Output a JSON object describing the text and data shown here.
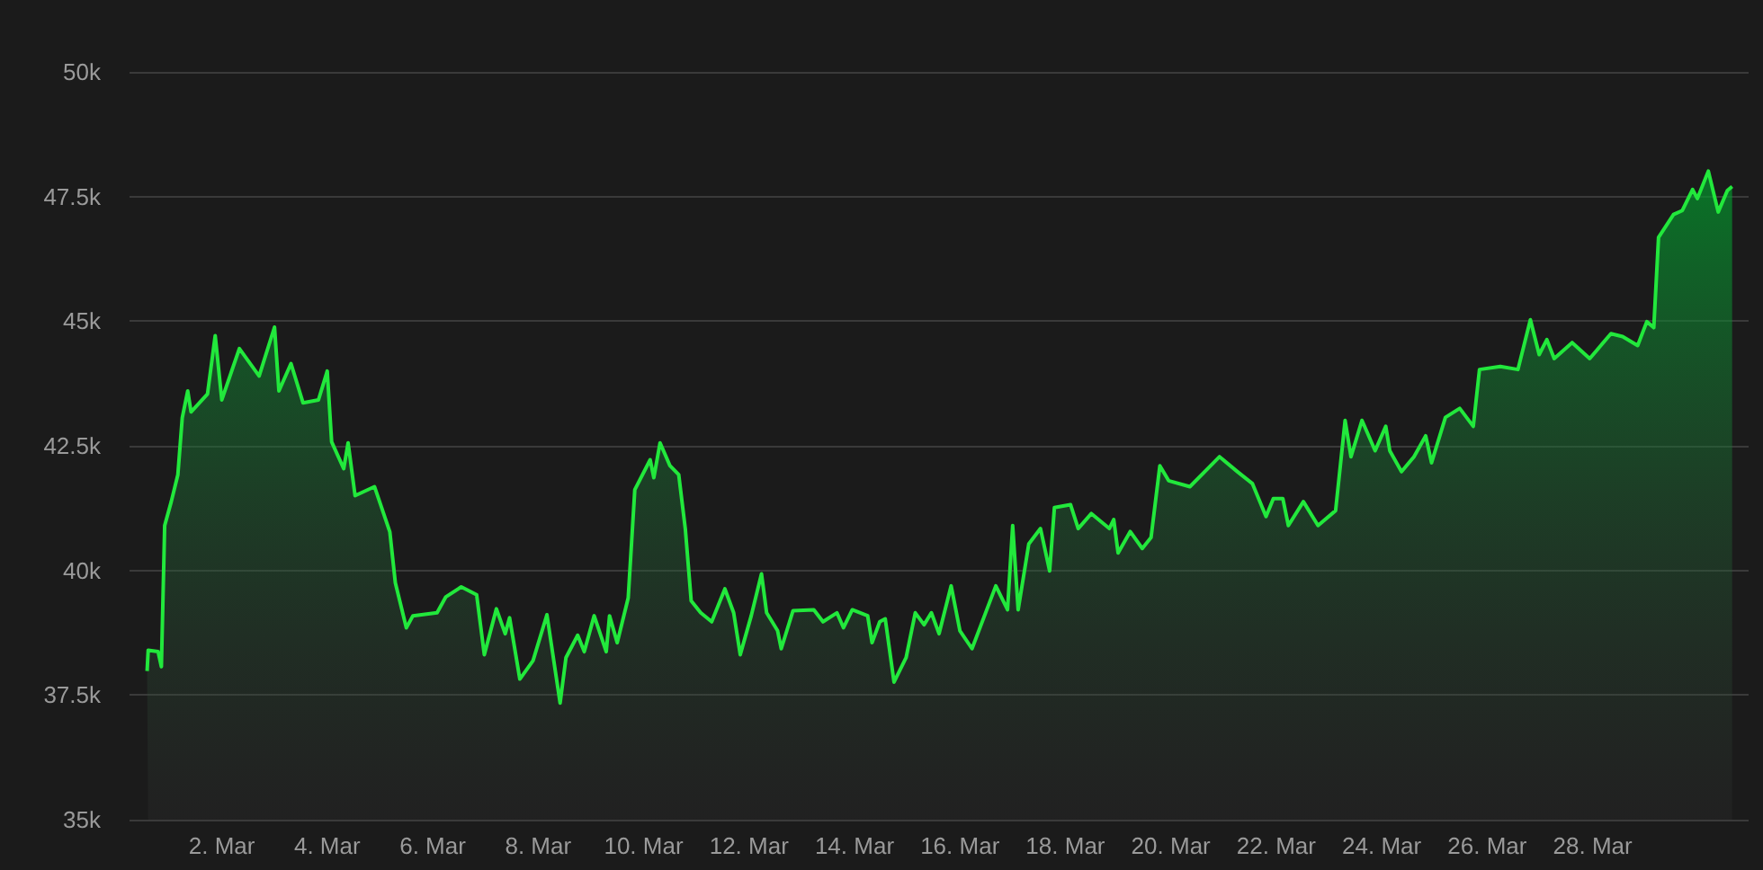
{
  "chart_data": {
    "type": "area",
    "color": "#22e83c",
    "grid": "y",
    "marker": "none",
    "line_style": "solid",
    "x": [
      "--02-28T14:00",
      "--02-28T14:30",
      "--02-28T19:00",
      "--02-28T20:30",
      "--02-28T22:00",
      "--03-01T01:00",
      "--03-01T04:00",
      "--03-01T06:00",
      "--03-01T08:30",
      "--03-01T10:00",
      "--03-01T17:30",
      "--03-01T21:00",
      "--03-02T00:00",
      "--03-02T08:00",
      "--03-02T17:00",
      "--03-03T00:00",
      "--03-03T02:00",
      "--03-03T07:30",
      "--03-03T13:00",
      "--03-03T20:00",
      "--03-04T00:00",
      "--03-04T02:00",
      "--03-04T07:30",
      "--03-04T09:30",
      "--03-04T12:40",
      "--03-04T21:30",
      "--03-05T04:30",
      "--03-05T07:00",
      "--03-05T12:00",
      "--03-05T15:00",
      "--03-06T02:00",
      "--03-06T06:00",
      "--03-06T13:00",
      "--03-06T20:00",
      "--03-06T23:30",
      "--03-07T05:00",
      "--03-07T09:00",
      "--03-07T11:00",
      "--03-07T15:40",
      "--03-07T21:40",
      "--03-08T04:00",
      "--03-08T10:00",
      "--03-08T12:40",
      "--03-08T18:00",
      "--03-08T21:00",
      "--03-09T01:30",
      "--03-09T07:00",
      "--03-09T08:30",
      "--03-09T12:00",
      "--03-09T17:00",
      "--03-09T20:00",
      "--03-10T03:00",
      "--03-10T04:40",
      "--03-10T07:30",
      "--03-10T12:00",
      "--03-10T16:00",
      "--03-10T19:00",
      "--03-10T21:40",
      "--03-11T02:00",
      "--03-11T07:00",
      "--03-11T13:00",
      "--03-11T17:00",
      "--03-11T20:00",
      "--03-12T01:00",
      "--03-12T05:40",
      "--03-12T08:00",
      "--03-12T13:00",
      "--03-12T14:40",
      "--03-12T20:00",
      "--03-13T05:30",
      "--03-13T09:40",
      "--03-13T16:00",
      "--03-13T19:00",
      "--03-13T23:00",
      "--03-14T06:00",
      "--03-14T08:00",
      "--03-14T11:30",
      "--03-14T14:00",
      "--03-14T18:00",
      "--03-14T23:30",
      "--03-15T03:40",
      "--03-15T07:40",
      "--03-15T11:00",
      "--03-15T14:30",
      "--03-15T20:00",
      "--03-16T00:00",
      "--03-16T05:30",
      "--03-16T16:20",
      "--03-16T21:40",
      "--03-17T00:00",
      "--03-17T02:30",
      "--03-17T07:20",
      "--03-17T12:40",
      "--03-17T16:50",
      "--03-17T19:00",
      "--03-18T02:20",
      "--03-18T05:50",
      "--03-18T11:50",
      "--03-18T20:00",
      "--03-18T22:00",
      "--03-19T00:00",
      "--03-19T05:30",
      "--03-19T11:00",
      "--03-19T15:00",
      "--03-19T19:00",
      "--03-19T23:00",
      "--03-20T08:40",
      "--03-20T22:10",
      "--03-21T06:20",
      "--03-21T13:10",
      "--03-21T19:20",
      "--03-21T22:40",
      "--03-22T03:00",
      "--03-22T05:30",
      "--03-22T12:20",
      "--03-22T19:00",
      "--03-23T03:00",
      "--03-23T07:20",
      "--03-23T10:00",
      "--03-23T15:00",
      "--03-23T21:00",
      "--03-24T01:50",
      "--03-24T03:40",
      "--03-24T09:00",
      "--03-24T14:40",
      "--03-24T20:00",
      "--03-24T22:40",
      "--03-25T05:00",
      "--03-25T11:30",
      "--03-25T17:40",
      "--03-25T20:30",
      "--03-26T06:00",
      "--03-26T14:00",
      "--03-26T19:40",
      "--03-26T23:40",
      "--03-27T03:10",
      "--03-27T06:30",
      "--03-27T14:40",
      "--03-27T22:40",
      "--03-28T08:20",
      "--03-28T13:40",
      "--03-28T20:30",
      "--03-29T00:40",
      "--03-29T03:50",
      "--03-29T06:00",
      "--03-29T12:50",
      "--03-29T16:50",
      "--03-29T21:30",
      "--03-29T23:40",
      "--03-30T04:40",
      "--03-30T09:10",
      "--03-30T13:20",
      "--03-30T15:30"
    ],
    "values": [
      37980,
      38400,
      38370,
      38070,
      40900,
      41380,
      41920,
      43060,
      43600,
      43180,
      43540,
      44710,
      43420,
      44450,
      43900,
      44880,
      43600,
      44150,
      43360,
      43420,
      44000,
      42580,
      42040,
      42560,
      41500,
      41680,
      40770,
      39750,
      38850,
      39090,
      39150,
      39470,
      39670,
      39510,
      38310,
      39230,
      38730,
      39050,
      37820,
      38190,
      39110,
      37340,
      38250,
      38700,
      38370,
      39090,
      38370,
      39090,
      38550,
      39450,
      41620,
      42220,
      41860,
      42560,
      42100,
      41920,
      40830,
      39390,
      39150,
      38970,
      39630,
      39150,
      38310,
      39090,
      39930,
      39150,
      38790,
      38430,
      39190,
      39210,
      38970,
      39150,
      38850,
      39210,
      39090,
      38550,
      38970,
      39030,
      37760,
      38250,
      39150,
      38910,
      39150,
      38730,
      39690,
      38790,
      38430,
      39690,
      39210,
      40900,
      39210,
      40530,
      40840,
      39990,
      41260,
      41320,
      40840,
      41140,
      40840,
      41020,
      40350,
      40780,
      40440,
      40660,
      42100,
      41800,
      41680,
      42280,
      41980,
      41740,
      41080,
      41440,
      41440,
      40900,
      41380,
      40900,
      41200,
      43010,
      42280,
      43010,
      42400,
      42890,
      42400,
      41980,
      42280,
      42700,
      42160,
      43070,
      43250,
      42890,
      44030,
      44090,
      44030,
      45030,
      44330,
      44630,
      44250,
      44570,
      44250,
      44750,
      44690,
      44510,
      44990,
      44870,
      46680,
      47140,
      47220,
      47640,
      47460,
      48010,
      47190,
      47620,
      47700
    ],
    "xlim": [
      "--02-28T06:00",
      "--03-30T23:00"
    ],
    "xticks": [
      {
        "value": "--03-02",
        "label": "2. Mar"
      },
      {
        "value": "--03-04",
        "label": "4. Mar"
      },
      {
        "value": "--03-06",
        "label": "6. Mar"
      },
      {
        "value": "--03-08",
        "label": "8. Mar"
      },
      {
        "value": "--03-10",
        "label": "10. Mar"
      },
      {
        "value": "--03-12",
        "label": "12. Mar"
      },
      {
        "value": "--03-14",
        "label": "14. Mar"
      },
      {
        "value": "--03-16",
        "label": "16. Mar"
      },
      {
        "value": "--03-18",
        "label": "18. Mar"
      },
      {
        "value": "--03-20",
        "label": "20. Mar"
      },
      {
        "value": "--03-22",
        "label": "22. Mar"
      },
      {
        "value": "--03-24",
        "label": "24. Mar"
      },
      {
        "value": "--03-26",
        "label": "26. Mar"
      },
      {
        "value": "--03-28",
        "label": "28. Mar"
      }
    ],
    "ylim": [
      35000,
      50000
    ],
    "yticks": [
      {
        "value": 35000,
        "label": "35k"
      },
      {
        "value": 37500,
        "label": "37.5k"
      },
      {
        "value": 40000,
        "label": "40k"
      },
      {
        "value": 42500,
        "label": "42.5k"
      },
      {
        "value": 45000,
        "label": "45k"
      },
      {
        "value": 47500,
        "label": "47.5k"
      },
      {
        "value": 50000,
        "label": "50k"
      }
    ]
  }
}
